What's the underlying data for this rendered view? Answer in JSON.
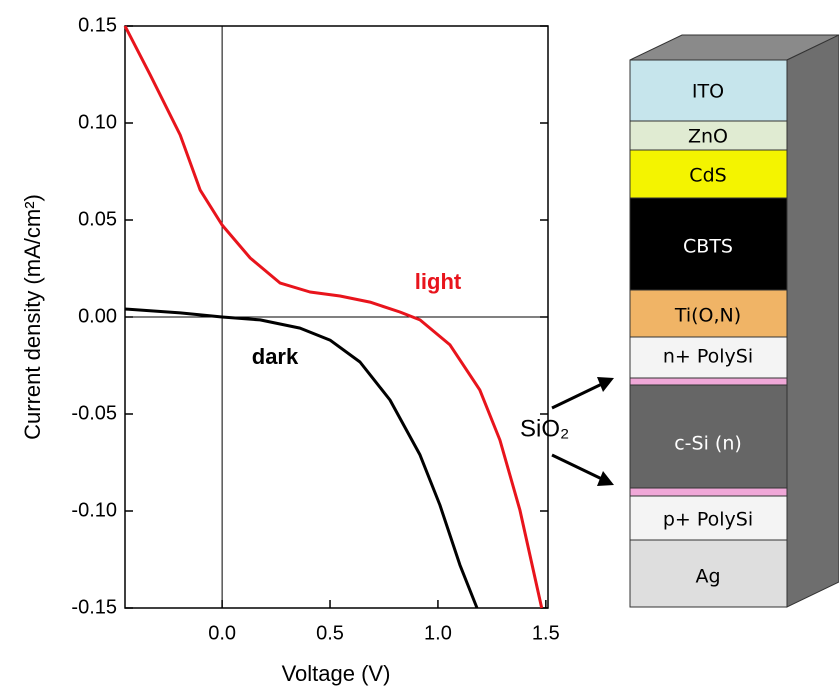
{
  "chart_data": {
    "type": "line",
    "xlabel": "Voltage (V)",
    "ylabel": "Current density (mA/cm²)",
    "xlim": [
      -0.45,
      1.51
    ],
    "ylim": [
      -0.15,
      0.15
    ],
    "xticks": [
      {
        "value": 0,
        "label": "0.0"
      },
      0.5,
      {
        "value": 1,
        "label": "1.0"
      },
      1.5
    ],
    "yticks": [
      -0.15,
      {
        "value": -0.1,
        "label": "-0.10"
      },
      -0.05,
      {
        "value": 0,
        "label": "0.00"
      },
      0.05,
      {
        "value": 0.1,
        "label": "0.10"
      },
      0.15
    ],
    "series": [
      {
        "name": "light",
        "color": "#e8141c",
        "x": [
          -0.45,
          -0.333,
          -0.194,
          -0.102,
          0,
          0.13,
          0.269,
          0.407,
          0.546,
          0.685,
          0.824,
          0.917,
          1.056,
          1.194,
          1.287,
          1.38,
          1.481
        ],
        "values": [
          0.15,
          0.1247,
          0.0938,
          0.0655,
          0.0474,
          0.0304,
          0.0175,
          0.0129,
          0.0108,
          0.0077,
          0.0026,
          -0.0015,
          -0.0144,
          -0.0376,
          -0.0634,
          -0.0995,
          -0.15
        ]
      },
      {
        "name": "dark",
        "color": "#000000",
        "x": [
          -0.45,
          -0.194,
          0,
          0.176,
          0.361,
          0.5,
          0.639,
          0.778,
          0.917,
          1.009,
          1.102,
          1.181
        ],
        "values": [
          0.0041,
          0.0021,
          0,
          -0.0015,
          -0.0057,
          -0.0119,
          -0.0232,
          -0.0428,
          -0.0711,
          -0.0969,
          -0.1278,
          -0.15
        ]
      }
    ]
  },
  "diagram": {
    "layers": [
      "ITO",
      "ZnO",
      "CdS",
      "CBTS",
      "Ti(O,N)",
      "n+ PolySi",
      "c-Si (n)",
      "p+ PolySi",
      "Ag"
    ],
    "annotation": "SiO₂"
  }
}
